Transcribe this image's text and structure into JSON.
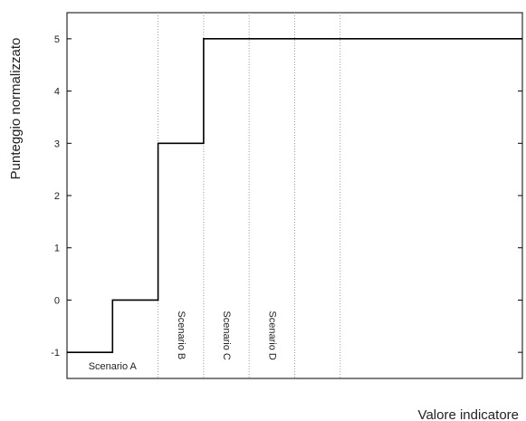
{
  "chart_data": {
    "type": "line",
    "step": true,
    "xlabel": "Valore indicatore",
    "ylabel": "Punteggio normalizzato",
    "ylim": [
      -1.5,
      5.5
    ],
    "yticks": [
      -1,
      0,
      1,
      2,
      3,
      4,
      5
    ],
    "xticks": [],
    "grid": "vertical dotted lines at scenario boundaries",
    "series": [
      {
        "color": "#000000",
        "steps": [
          {
            "x_from": 0,
            "x_to": 1,
            "y": -1
          },
          {
            "x_from": 1,
            "x_to": 2,
            "y": 0
          },
          {
            "x_from": 2,
            "x_to": 3,
            "y": 3
          },
          {
            "x_from": 3,
            "x_to": 10,
            "y": 5
          }
        ]
      }
    ],
    "xlim": [
      0,
      10
    ],
    "boundaries": [
      2,
      3,
      4,
      5,
      6
    ],
    "regions": [
      {
        "label": "Scenario A",
        "x": 1,
        "orientation": "horizontal"
      },
      {
        "label": "Scenario B",
        "x": 2.5,
        "orientation": "vertical"
      },
      {
        "label": "Scenario C",
        "x": 3.5,
        "orientation": "vertical"
      },
      {
        "label": "Scenario D",
        "x": 4.5,
        "orientation": "vertical"
      }
    ]
  }
}
